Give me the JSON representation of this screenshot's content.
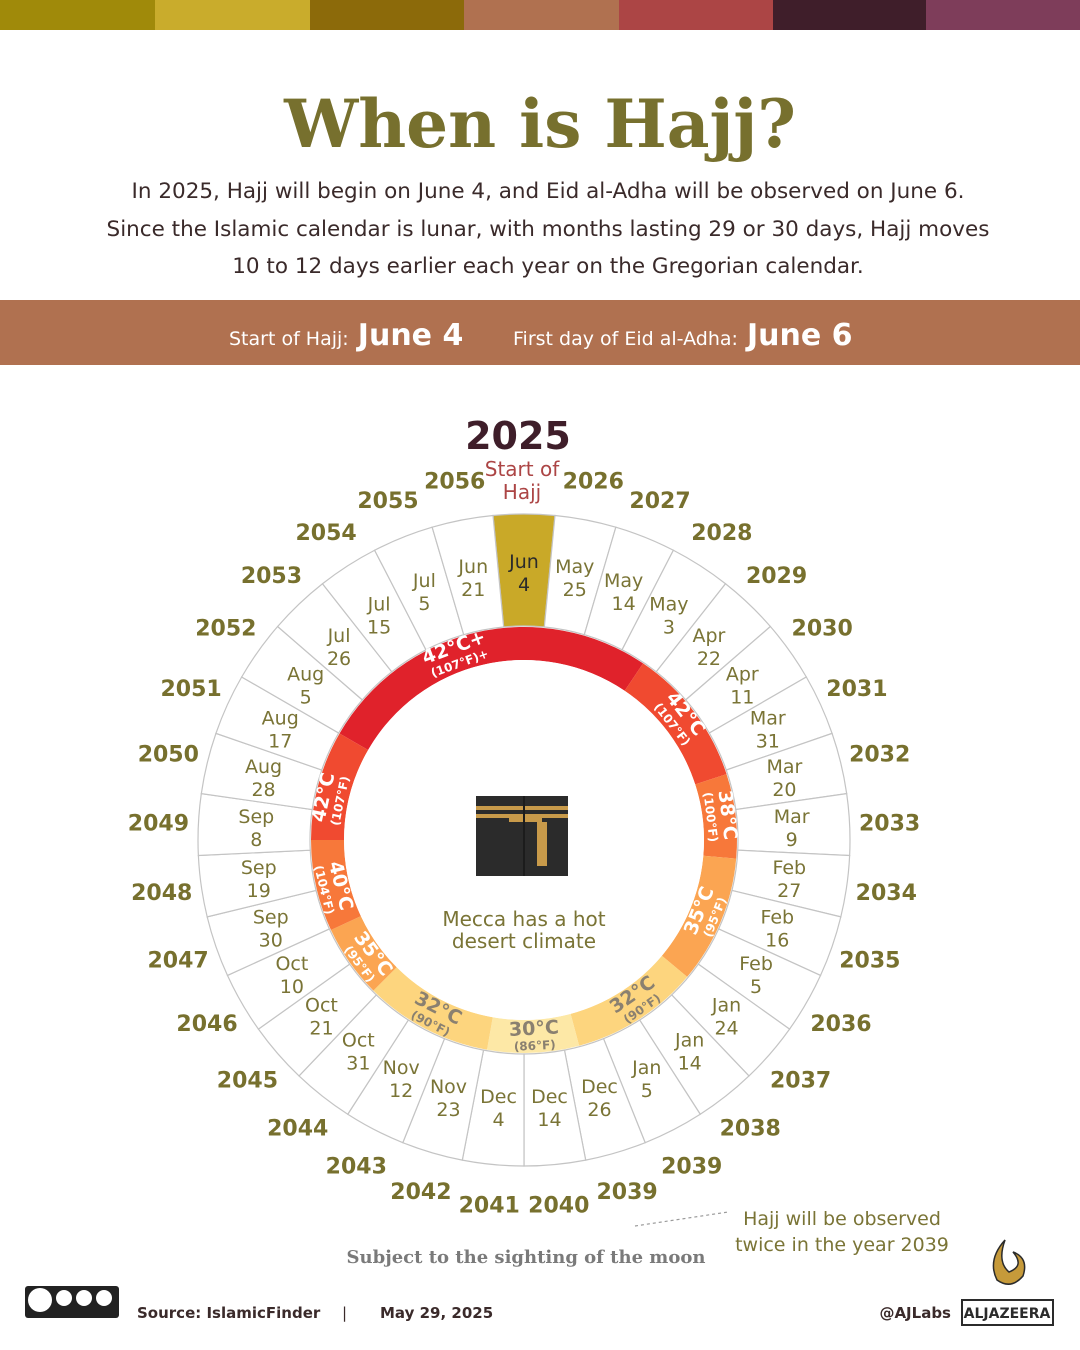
{
  "header": {
    "title": "When is Hajj?",
    "description": [
      "In 2025, Hajj will begin on June 4, and Eid al-Adha will be observed on June 6.",
      "Since the Islamic calendar is lunar, with months lasting 29 or 30 days, Hajj moves",
      "10 to 12 days earlier each year on the Gregorian calendar."
    ]
  },
  "banner": {
    "start_label": "Start of Hajj:",
    "start_date": "June 4",
    "eid_label": "First day of Eid al-Adha:",
    "eid_date": "June 6"
  },
  "wheel": {
    "current_year": "2025",
    "start_label": [
      "Start of",
      "Hajj"
    ],
    "center_text": [
      "Mecca has a hot",
      "desert climate"
    ],
    "segments": [
      {
        "year": "2025",
        "month": "Jun",
        "day": "4"
      },
      {
        "year": "2026",
        "month": "May",
        "day": "25"
      },
      {
        "year": "2027",
        "month": "May",
        "day": "14"
      },
      {
        "year": "2028",
        "month": "May",
        "day": "3"
      },
      {
        "year": "2029",
        "month": "Apr",
        "day": "22"
      },
      {
        "year": "2030",
        "month": "Apr",
        "day": "11"
      },
      {
        "year": "2031",
        "month": "Mar",
        "day": "31"
      },
      {
        "year": "2032",
        "month": "Mar",
        "day": "20"
      },
      {
        "year": "2033",
        "month": "Mar",
        "day": "9"
      },
      {
        "year": "2034",
        "month": "Feb",
        "day": "27"
      },
      {
        "year": "2035",
        "month": "Feb",
        "day": "16"
      },
      {
        "year": "2036",
        "month": "Feb",
        "day": "5"
      },
      {
        "year": "2037",
        "month": "Jan",
        "day": "24"
      },
      {
        "year": "2038",
        "month": "Jan",
        "day": "14"
      },
      {
        "year": "2039",
        "month": "Jan",
        "day": "5"
      },
      {
        "year": "2039",
        "month": "Dec",
        "day": "26"
      },
      {
        "year": "2040",
        "month": "Dec",
        "day": "14"
      },
      {
        "year": "2041",
        "month": "Dec",
        "day": "4"
      },
      {
        "year": "2042",
        "month": "Nov",
        "day": "23"
      },
      {
        "year": "2043",
        "month": "Nov",
        "day": "12"
      },
      {
        "year": "2044",
        "month": "Oct",
        "day": "31"
      },
      {
        "year": "2045",
        "month": "Oct",
        "day": "21"
      },
      {
        "year": "2046",
        "month": "Oct",
        "day": "10"
      },
      {
        "year": "2047",
        "month": "Sep",
        "day": "30"
      },
      {
        "year": "2048",
        "month": "Sep",
        "day": "19"
      },
      {
        "year": "2049",
        "month": "Sep",
        "day": "8"
      },
      {
        "year": "2050",
        "month": "Aug",
        "day": "28"
      },
      {
        "year": "2051",
        "month": "Aug",
        "day": "17"
      },
      {
        "year": "2052",
        "month": "Aug",
        "day": "5"
      },
      {
        "year": "2053",
        "month": "Jul",
        "day": "26"
      },
      {
        "year": "2054",
        "month": "Jul",
        "day": "15"
      },
      {
        "year": "2055",
        "month": "Jul",
        "day": "5"
      },
      {
        "year": "2056",
        "month": "Jun",
        "day": "21"
      }
    ],
    "temperatures": [
      {
        "celsius": "42°C+",
        "fahrenheit": "(107°F)+",
        "color": "#e0222b",
        "text_color": "#ffffff"
      },
      {
        "celsius": "42°C",
        "fahrenheit": "(107°F)",
        "color": "#f04a30",
        "text_color": "#ffffff"
      },
      {
        "celsius": "38°C",
        "fahrenheit": "(100°F)",
        "color": "#f7783a",
        "text_color": "#ffffff"
      },
      {
        "celsius": "35°C",
        "fahrenheit": "(95°F)",
        "color": "#fba552",
        "text_color": "#ffffff"
      },
      {
        "celsius": "32°C",
        "fahrenheit": "(90°F)",
        "color": "#fdd57e",
        "text_color": "#8a8070"
      },
      {
        "celsius": "30°C",
        "fahrenheit": "(86°F)",
        "color": "#fde8a6",
        "text_color": "#8a8070"
      },
      {
        "celsius": "32°C",
        "fahrenheit": "(90°F)",
        "color": "#fdd57e",
        "text_color": "#8a8070"
      },
      {
        "celsius": "35°C",
        "fahrenheit": "(95°F)",
        "color": "#fba552",
        "text_color": "#ffffff"
      },
      {
        "celsius": "40°C",
        "fahrenheit": "(104°F)",
        "color": "#f7783a",
        "text_color": "#ffffff"
      },
      {
        "celsius": "42°C",
        "fahrenheit": "(107°F)",
        "color": "#f04a30",
        "text_color": "#ffffff"
      }
    ],
    "annotation": [
      "Hajj will be observed",
      "twice in the year 2039"
    ]
  },
  "footer": {
    "note": "Subject to the sighting of the moon",
    "source": "Source:  IslamicFinder",
    "separator": "|",
    "date": "May 29, 2025",
    "handle": "@AJLabs",
    "brand": "ALJAZEERA"
  }
}
